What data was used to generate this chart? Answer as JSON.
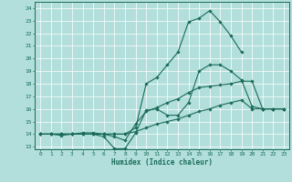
{
  "xlabel": "Humidex (Indice chaleur)",
  "bg_color": "#b2dfdb",
  "grid_color": "#ffffff",
  "line_color": "#1a6b5a",
  "xlim": [
    -0.5,
    23.5
  ],
  "ylim": [
    12.8,
    24.5
  ],
  "yticks": [
    13,
    14,
    15,
    16,
    17,
    18,
    19,
    20,
    21,
    22,
    23,
    24
  ],
  "xticks": [
    0,
    1,
    2,
    3,
    4,
    5,
    6,
    7,
    8,
    9,
    10,
    11,
    12,
    13,
    14,
    15,
    16,
    17,
    18,
    19,
    20,
    21,
    22,
    23
  ],
  "series": [
    [
      14.0,
      14.0,
      14.0,
      14.0,
      14.0,
      14.0,
      13.8,
      12.85,
      12.85,
      14.1,
      15.9,
      16.0,
      15.5,
      15.5,
      16.5,
      19.0,
      19.5,
      19.5,
      19.0,
      18.3,
      16.2,
      16.0,
      16.0,
      16.0
    ],
    [
      14.0,
      14.0,
      13.9,
      14.0,
      14.1,
      14.1,
      14.0,
      13.8,
      13.5,
      14.8,
      15.8,
      16.1,
      16.5,
      16.8,
      17.3,
      17.7,
      17.8,
      17.9,
      18.0,
      18.2,
      18.2,
      16.0,
      16.0,
      16.0
    ],
    [
      14.0,
      14.0,
      14.0,
      14.0,
      14.0,
      14.0,
      14.0,
      14.0,
      14.0,
      14.2,
      14.5,
      14.8,
      15.0,
      15.2,
      15.5,
      15.8,
      16.0,
      16.3,
      16.5,
      16.7,
      16.0,
      16.0,
      16.0,
      16.0
    ],
    [
      14.0,
      14.0,
      14.0,
      14.0,
      14.0,
      14.0,
      14.0,
      14.0,
      14.0,
      14.5,
      18.0,
      18.5,
      19.5,
      20.5,
      22.9,
      23.2,
      23.8,
      22.9,
      21.8,
      20.5,
      null,
      null,
      null,
      null
    ]
  ]
}
